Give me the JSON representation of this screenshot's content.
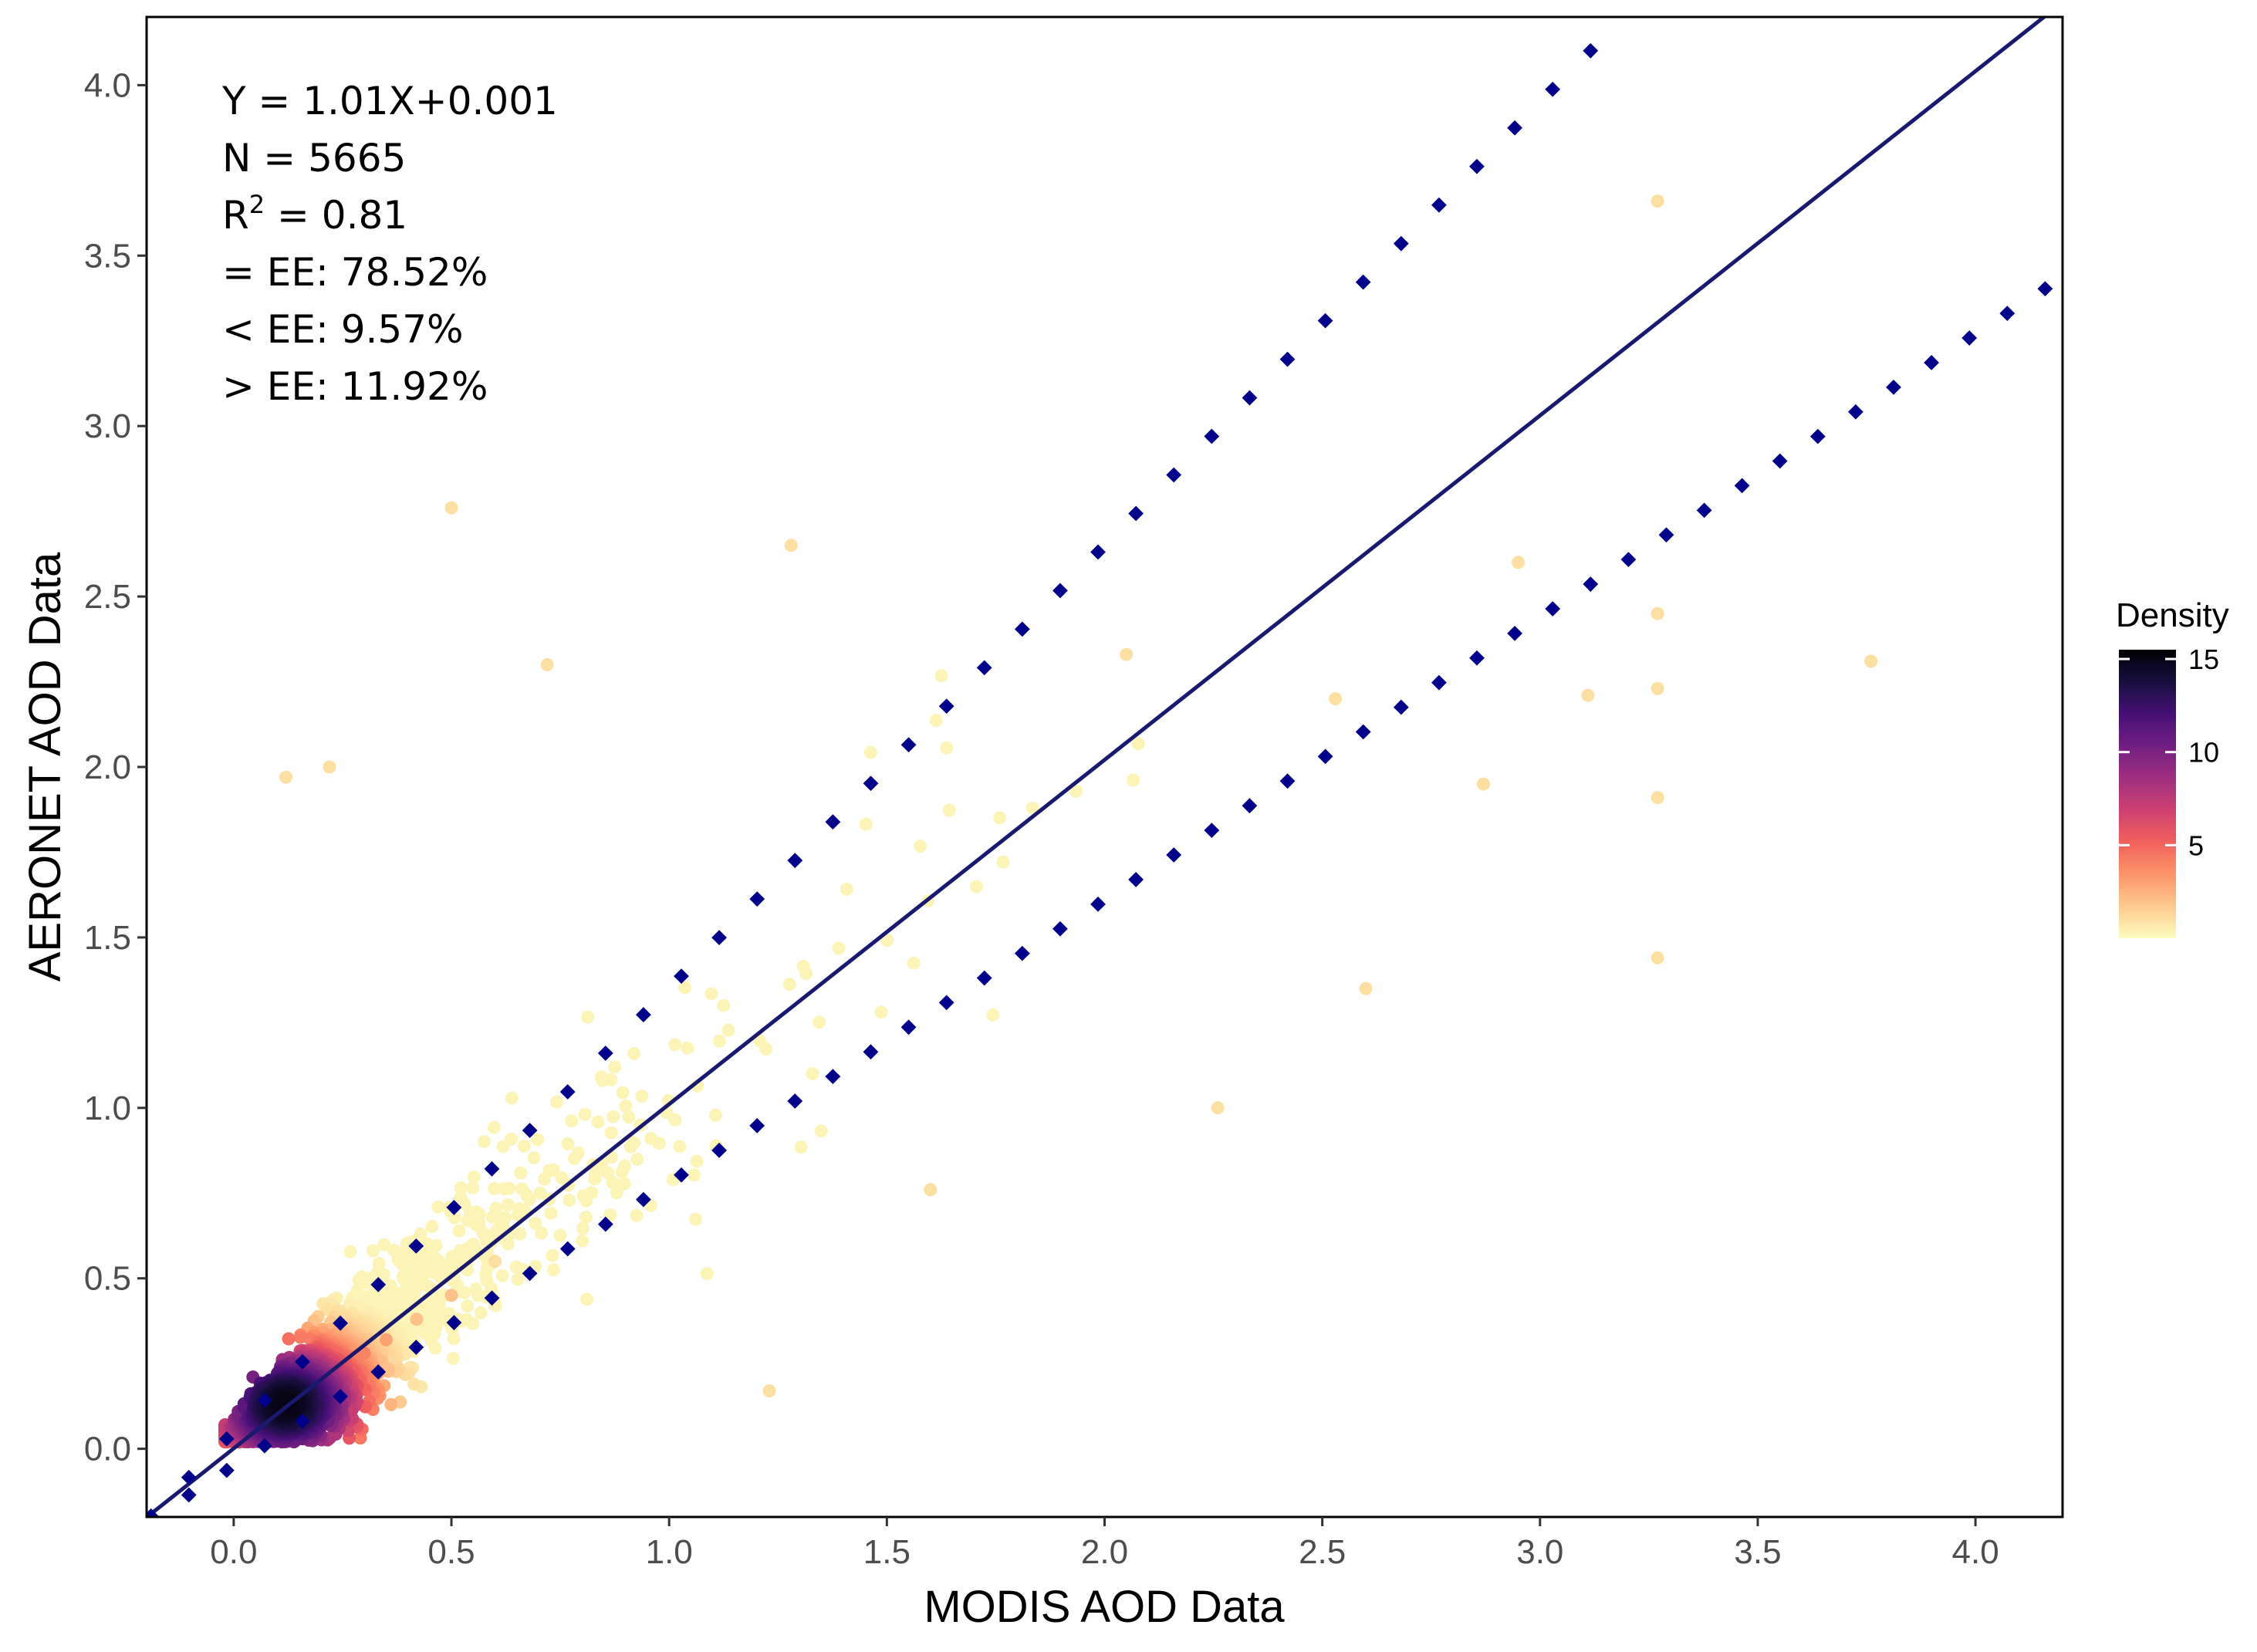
{
  "chart_data": {
    "type": "scatter",
    "title": "",
    "xlabel": "MODIS AOD Data",
    "ylabel": "AERONET AOD Data",
    "xlim": [
      -0.2,
      4.2
    ],
    "ylim": [
      -0.2,
      4.2
    ],
    "xticks": [
      0.0,
      0.5,
      1.0,
      1.5,
      2.0,
      2.5,
      3.0,
      3.5,
      4.0
    ],
    "yticks": [
      0.0,
      0.5,
      1.0,
      1.5,
      2.0,
      2.5,
      3.0,
      3.5,
      4.0
    ],
    "xtick_labels": [
      "0.0",
      "0.5",
      "1.0",
      "1.5",
      "2.0",
      "2.5",
      "3.0",
      "3.5",
      "4.0"
    ],
    "ytick_labels": [
      "0.0",
      "0.5",
      "1.0",
      "1.5",
      "2.0",
      "2.5",
      "3.0",
      "3.5",
      "4.0"
    ],
    "grid": false,
    "legend": {
      "title": "Density",
      "position": "right",
      "ticks": [
        5,
        10,
        15
      ],
      "tick_labels": [
        "5",
        "10",
        "15"
      ],
      "range": [
        0,
        15.5
      ],
      "colormap": [
        "#FCFDBF",
        "#FEC98D",
        "#FD9567",
        "#F1605D",
        "#CD4071",
        "#9F2F7F",
        "#721F81",
        "#451077",
        "#180F3D",
        "#000004"
      ]
    },
    "annotations": {
      "equation": "Y = 1.01X+0.001",
      "n": "N = 5665",
      "r2_prefix": "R",
      "r2_sup": "2",
      "r2_value": " = 0.81",
      "within_ee": "= EE: 78.52%",
      "below_ee": "< EE: 9.57%",
      "above_ee": "> EE: 11.92%"
    },
    "series": [
      {
        "name": "regression",
        "kind": "line",
        "slope": 1.01,
        "intercept": 0.001,
        "color": "#191970",
        "x_range": [
          -0.2,
          4.2
        ]
      },
      {
        "name": "EE upper",
        "kind": "dotted-line",
        "slope": 1.3,
        "intercept": 0.05,
        "color": "#00008B",
        "x_start": -0.19,
        "x_step": 0.087
      },
      {
        "name": "EE lower",
        "kind": "dotted-line",
        "slope": 0.83,
        "intercept": -0.05,
        "color": "#00008B",
        "x_start": -0.19,
        "x_step": 0.087
      },
      {
        "name": "observations",
        "kind": "points",
        "n": 5665,
        "density_colored": true,
        "sample": [
          [
            0.12,
            0.13,
            15
          ],
          [
            0.1,
            0.12,
            14
          ],
          [
            0.14,
            0.15,
            13
          ],
          [
            0.08,
            0.1,
            12
          ],
          [
            0.16,
            0.12,
            11
          ],
          [
            0.06,
            0.14,
            10
          ],
          [
            0.18,
            0.18,
            9
          ],
          [
            0.22,
            0.2,
            7
          ],
          [
            0.04,
            0.08,
            7
          ],
          [
            0.26,
            0.22,
            5
          ],
          [
            0.3,
            0.28,
            4
          ],
          [
            0.35,
            0.32,
            3
          ],
          [
            0.42,
            0.38,
            2
          ],
          [
            0.5,
            0.45,
            2
          ],
          [
            0.6,
            0.55,
            1
          ],
          [
            0.5,
            2.76,
            1
          ],
          [
            0.12,
            1.97,
            1
          ],
          [
            0.22,
            2.0,
            1
          ],
          [
            0.72,
            2.3,
            1
          ],
          [
            1.28,
            2.65,
            1
          ],
          [
            2.95,
            2.6,
            1
          ],
          [
            3.27,
            3.66,
            1
          ],
          [
            3.76,
            2.31,
            1
          ],
          [
            3.27,
            2.45,
            1
          ],
          [
            3.27,
            2.23,
            1
          ],
          [
            3.27,
            1.91,
            1
          ],
          [
            3.27,
            1.44,
            1
          ],
          [
            2.6,
            1.35,
            1
          ],
          [
            2.26,
            1.0,
            1
          ],
          [
            1.23,
            0.17,
            1
          ],
          [
            1.6,
            0.76,
            1
          ],
          [
            2.87,
            1.95,
            1
          ],
          [
            3.11,
            2.21,
            1
          ],
          [
            2.53,
            2.2,
            1
          ],
          [
            2.05,
            2.33,
            1
          ]
        ]
      }
    ]
  }
}
